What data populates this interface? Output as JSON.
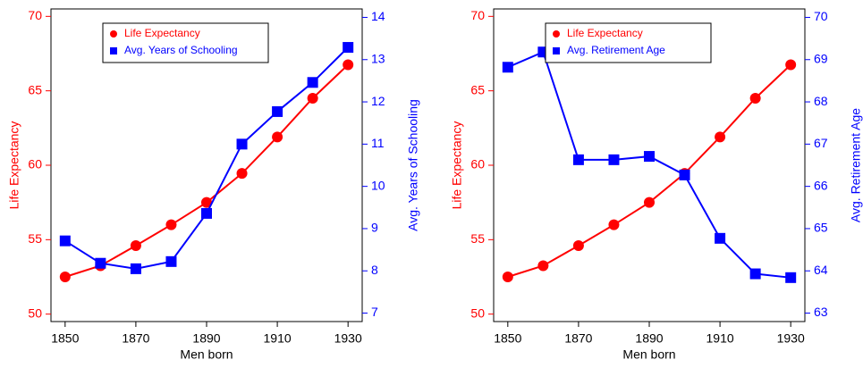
{
  "chart_data": [
    {
      "type": "line",
      "xlabel": "Men born",
      "ylabel": "Life Expectancy",
      "y2label": "Avg. Years of Schooling",
      "x": [
        1850,
        1860,
        1870,
        1880,
        1890,
        1900,
        1910,
        1920,
        1930
      ],
      "xlim": [
        1846,
        1934
      ],
      "xticks": [
        1850,
        1870,
        1890,
        1910,
        1930
      ],
      "ylim": [
        49.5,
        70.5
      ],
      "yticks": [
        50,
        55,
        60,
        65,
        70
      ],
      "y2lim": [
        6.8,
        14.2
      ],
      "y2ticks": [
        7,
        8,
        9,
        10,
        11,
        12,
        13,
        14
      ],
      "legend": "top",
      "series": [
        {
          "name": "Life Expectancy",
          "color": "#ff0000",
          "marker": "circle",
          "values": [
            52.5,
            53.25,
            54.6,
            56.0,
            57.5,
            59.45,
            61.9,
            64.5,
            66.75
          ]
        },
        {
          "name": "Avg. Years of Schooling",
          "color": "#0000ff",
          "marker": "square",
          "axis": "y2",
          "values": [
            8.71,
            8.18,
            8.05,
            8.22,
            9.36,
            11.0,
            11.77,
            12.46,
            13.29
          ]
        }
      ]
    },
    {
      "type": "line",
      "xlabel": "Men born",
      "ylabel": "Life Expectancy",
      "y2label": "Avg. Retirement Age",
      "x": [
        1850,
        1860,
        1870,
        1880,
        1890,
        1900,
        1910,
        1920,
        1930
      ],
      "xlim": [
        1846,
        1934
      ],
      "xticks": [
        1850,
        1870,
        1890,
        1910,
        1930
      ],
      "ylim": [
        49.5,
        70.5
      ],
      "yticks": [
        50,
        55,
        60,
        65,
        70
      ],
      "y2lim": [
        62.8,
        70.2
      ],
      "y2ticks": [
        63,
        64,
        65,
        66,
        67,
        68,
        69,
        70
      ],
      "legend": "top",
      "series": [
        {
          "name": "Life Expectancy",
          "color": "#ff0000",
          "marker": "circle",
          "values": [
            52.5,
            53.25,
            54.6,
            56.0,
            57.5,
            59.45,
            61.9,
            64.5,
            66.75
          ]
        },
        {
          "name": "Avg. Retirement Age",
          "color": "#0000ff",
          "marker": "square",
          "axis": "y2",
          "values": [
            68.82,
            69.18,
            66.63,
            66.63,
            66.71,
            66.27,
            64.77,
            63.93,
            63.84
          ]
        }
      ]
    }
  ]
}
